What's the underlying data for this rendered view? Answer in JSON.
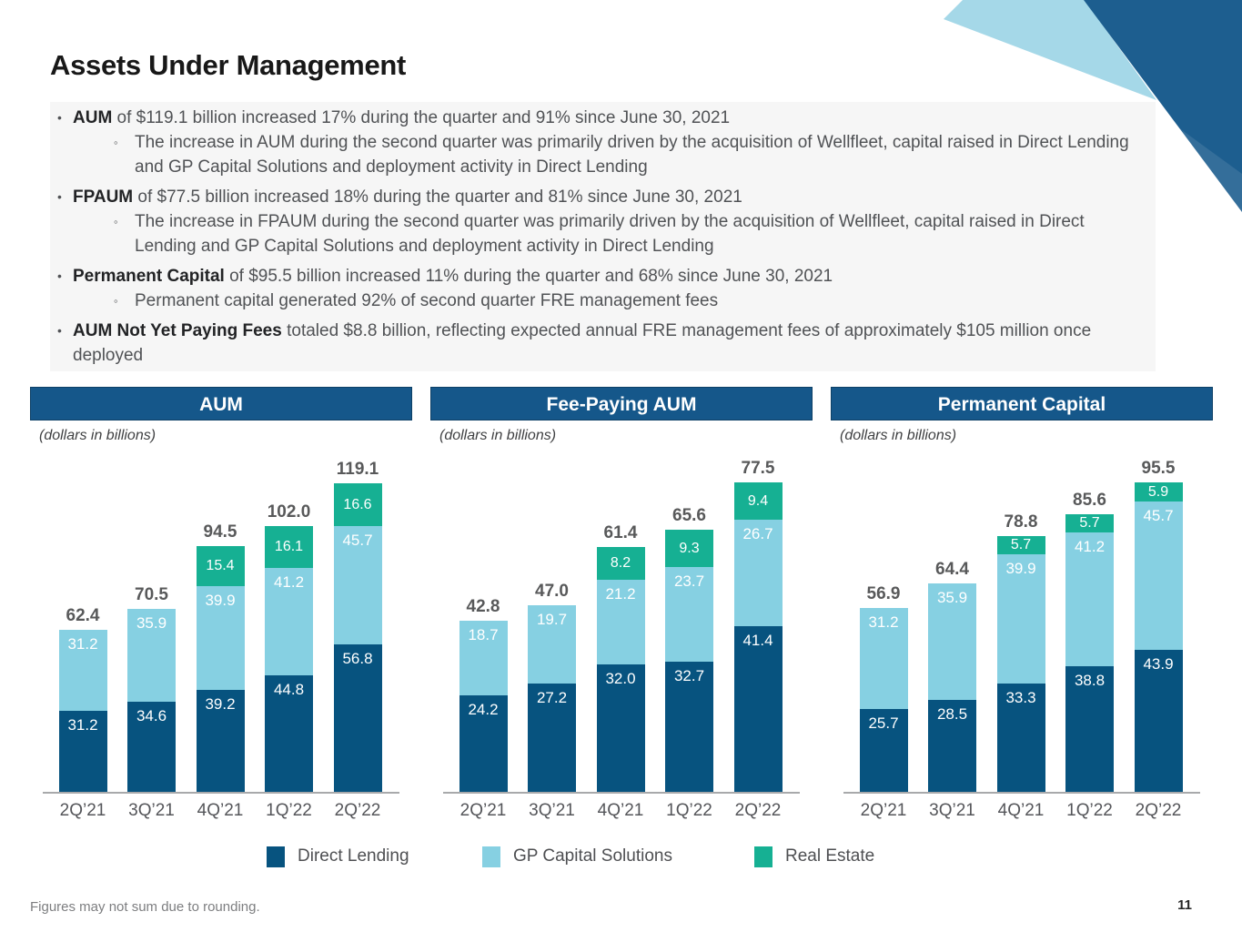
{
  "page": {
    "title": "Assets Under Management",
    "footnote": "Figures may not sum due to rounding.",
    "page_number": "11"
  },
  "bullets": [
    {
      "lead": "AUM",
      "rest": " of $119.1 billion increased 17% during the quarter and 91% since June 30, 2021",
      "subs": [
        "The increase in AUM during the second quarter was primarily driven by the acquisition of Wellfleet, capital raised in Direct Lending and GP Capital Solutions and deployment activity in Direct Lending"
      ]
    },
    {
      "lead": "FPAUM",
      "rest": " of $77.5 billion increased 18% during the quarter and 81% since June 30, 2021",
      "subs": [
        "The increase in FPAUM during the second quarter was primarily driven by the acquisition of Wellfleet, capital raised in Direct Lending and GP Capital Solutions and deployment activity in Direct Lending"
      ]
    },
    {
      "lead": "Permanent Capital",
      "rest": " of $95.5 billion increased 11% during the quarter and 68% since June 30, 2021",
      "subs": [
        "Permanent capital generated 92% of second quarter FRE management fees"
      ]
    },
    {
      "lead": "AUM Not Yet Paying Fees",
      "rest": " totaled $8.8 billion, reflecting expected annual FRE management fees of approximately $105 million once deployed",
      "subs": []
    }
  ],
  "legend": [
    {
      "label": "Direct Lending",
      "color": "#07537f"
    },
    {
      "label": "GP Capital Solutions",
      "color": "#86d0e2"
    },
    {
      "label": "Real Estate",
      "color": "#16b093"
    }
  ],
  "colors": {
    "header_bar": "#15578a",
    "corner_dark": "#1d5e8f",
    "corner_light": "#a5d8e8",
    "axis_line": "#a8a9ab",
    "total_label": "#58595a",
    "panel_background": "#f6f6f6"
  },
  "chart_data": [
    {
      "type": "bar",
      "stacked": true,
      "title": "AUM",
      "subtitle": "(dollars in billions)",
      "categories": [
        "2Q’21",
        "3Q’21",
        "4Q’21",
        "1Q’22",
        "2Q’22"
      ],
      "series": [
        {
          "name": "Direct Lending",
          "values": [
            31.2,
            34.6,
            39.2,
            44.8,
            56.8
          ]
        },
        {
          "name": "GP Capital Solutions",
          "values": [
            31.2,
            35.9,
            39.9,
            41.2,
            45.7
          ]
        },
        {
          "name": "Real Estate",
          "values": [
            null,
            null,
            15.4,
            16.1,
            16.6
          ]
        }
      ],
      "totals": [
        "62.4",
        "70.5",
        "94.5",
        "102.0",
        "119.1"
      ],
      "legend_position": "bottom",
      "grid": false
    },
    {
      "type": "bar",
      "stacked": true,
      "title": "Fee-Paying AUM",
      "subtitle": "(dollars in billions)",
      "categories": [
        "2Q’21",
        "3Q’21",
        "4Q’21",
        "1Q’22",
        "2Q’22"
      ],
      "series": [
        {
          "name": "Direct Lending",
          "values": [
            24.2,
            27.2,
            32.0,
            32.7,
            41.4
          ]
        },
        {
          "name": "GP Capital Solutions",
          "values": [
            18.7,
            19.7,
            21.2,
            23.7,
            26.7
          ]
        },
        {
          "name": "Real Estate",
          "values": [
            null,
            null,
            8.2,
            9.3,
            9.4
          ]
        }
      ],
      "totals": [
        "42.8",
        "47.0",
        "61.4",
        "65.6",
        "77.5"
      ],
      "legend_position": "bottom",
      "grid": false
    },
    {
      "type": "bar",
      "stacked": true,
      "title": "Permanent Capital",
      "subtitle": "(dollars in billions)",
      "categories": [
        "2Q’21",
        "3Q’21",
        "4Q’21",
        "1Q’22",
        "2Q’22"
      ],
      "series": [
        {
          "name": "Direct Lending",
          "values": [
            25.7,
            28.5,
            33.3,
            38.8,
            43.9
          ]
        },
        {
          "name": "GP Capital Solutions",
          "values": [
            31.2,
            35.9,
            39.9,
            41.2,
            45.7
          ]
        },
        {
          "name": "Real Estate",
          "values": [
            null,
            null,
            5.7,
            5.7,
            5.9
          ]
        }
      ],
      "totals": [
        "56.9",
        "64.4",
        "78.8",
        "85.6",
        "95.5"
      ],
      "legend_position": "bottom",
      "grid": false
    }
  ]
}
